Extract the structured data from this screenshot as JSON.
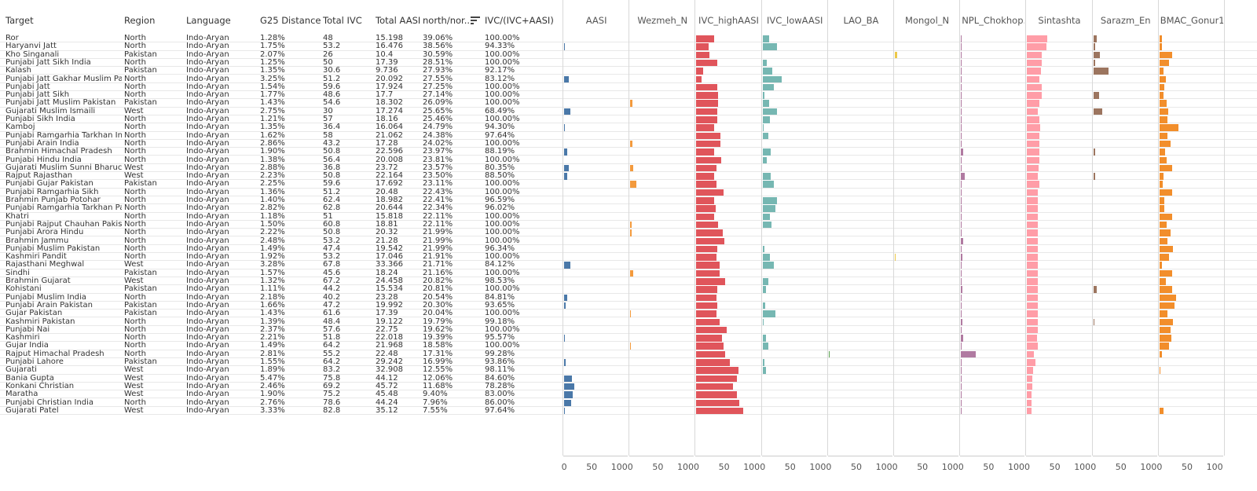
{
  "columns": {
    "target": "Target",
    "region": "Region",
    "language": "Language",
    "g25": "G25 Distance",
    "ivc": "Total IVC",
    "aasi": "Total AASI",
    "ratio": "north/nor..",
    "ivc_share": "IVC/(IVC+AASI)"
  },
  "sort_icon": "sort-descending-icon",
  "bar_columns": [
    {
      "key": "aasi",
      "label": "AASI",
      "color": "#4a78a8"
    },
    {
      "key": "wez",
      "label": "Wezmeh_N",
      "color": "#f39a3d"
    },
    {
      "key": "ivch",
      "label": "IVC_highAASI",
      "color": "#e0555b"
    },
    {
      "key": "ivcl",
      "label": "IVC_lowAASI",
      "color": "#76b7b2"
    },
    {
      "key": "lao",
      "label": "LAO_BA",
      "color": "#59a14f"
    },
    {
      "key": "mon",
      "label": "Mongol_N",
      "color": "#edc949"
    },
    {
      "key": "npl",
      "label": "NPL_Chokhop..",
      "color": "#b07aa1"
    },
    {
      "key": "sin",
      "label": "Sintashta",
      "color": "#ff9da7"
    },
    {
      "key": "sar",
      "label": "Sarazm_En",
      "color": "#9c755f"
    },
    {
      "key": "bmac",
      "label": "BMAC_Gonur1",
      "color": "#f28e2b"
    }
  ],
  "axis_ticks": [
    "0",
    "50",
    "100"
  ],
  "rows": [
    {
      "target": "Ror",
      "region": "North",
      "language": "Indo-Aryan",
      "g25": "1.28%",
      "ivc": "48",
      "aasi": "15.198",
      "ratio": "39.06%",
      "ivc_share": "100.00%",
      "aasi_v": 0,
      "wez": 0,
      "ivch": 33,
      "ivcl": 12,
      "lao": 0,
      "mon": 0,
      "npl": 1,
      "sin": 37,
      "sar": 6,
      "bmac": 5
    },
    {
      "target": "Haryanvi Jatt",
      "region": "North",
      "language": "Indo-Aryan",
      "g25": "1.75%",
      "ivc": "53.2",
      "aasi": "16.476",
      "ratio": "38.56%",
      "ivc_share": "94.33%",
      "aasi_v": 2,
      "wez": 0,
      "ivch": 23,
      "ivcl": 27,
      "lao": 0,
      "mon": 0,
      "npl": 1,
      "sin": 35,
      "sar": 4,
      "bmac": 4
    },
    {
      "target": "Kho Singanali",
      "region": "Pakistan",
      "language": "Indo-Aryan",
      "g25": "2.07%",
      "ivc": "26",
      "aasi": "10.4",
      "ratio": "30.59%",
      "ivc_share": "100.00%",
      "aasi_v": 0,
      "wez": 0,
      "ivch": 24,
      "ivcl": 0,
      "lao": 0,
      "mon": 4,
      "npl": 1,
      "sin": 27,
      "sar": 12,
      "bmac": 23
    },
    {
      "target": "Punjabi Jatt Sikh India",
      "region": "North",
      "language": "Indo-Aryan",
      "g25": "1.25%",
      "ivc": "50",
      "aasi": "17.39",
      "ratio": "28.51%",
      "ivc_share": "100.00%",
      "aasi_v": 0,
      "wez": 0,
      "ivch": 38,
      "ivcl": 8,
      "lao": 0,
      "mon": 0,
      "npl": 1,
      "sin": 27,
      "sar": 3,
      "bmac": 18
    },
    {
      "target": "Kalash",
      "region": "Pakistan",
      "language": "Indo-Aryan",
      "g25": "1.35%",
      "ivc": "30.6",
      "aasi": "9.736",
      "ratio": "27.93%",
      "ivc_share": "92.17%",
      "aasi_v": 0,
      "wez": 0,
      "ivch": 12,
      "ivcl": 18,
      "lao": 0,
      "mon": 0,
      "npl": 1,
      "sin": 25,
      "sar": 28,
      "bmac": 8
    },
    {
      "target": "Punjabi Jatt Gakhar Muslim Pakistan",
      "region": "North",
      "language": "Indo-Aryan",
      "g25": "3.25%",
      "ivc": "51.2",
      "aasi": "20.092",
      "ratio": "27.55%",
      "ivc_share": "83.12%",
      "aasi_v": 9,
      "wez": 0,
      "ivch": 10,
      "ivcl": 35,
      "lao": 0,
      "mon": 0,
      "npl": 1,
      "sin": 22,
      "sar": 0,
      "bmac": 12
    },
    {
      "target": "Punjabi Jatt",
      "region": "North",
      "language": "Indo-Aryan",
      "g25": "1.54%",
      "ivc": "59.6",
      "aasi": "17.924",
      "ratio": "27.25%",
      "ivc_share": "100.00%",
      "aasi_v": 0,
      "wez": 0,
      "ivch": 38,
      "ivcl": 20,
      "lao": 0,
      "mon": 0,
      "npl": 1,
      "sin": 26,
      "sar": 0,
      "bmac": 9
    },
    {
      "target": "Punjabi Jatt Sikh",
      "region": "North",
      "language": "Indo-Aryan",
      "g25": "1.77%",
      "ivc": "48.6",
      "aasi": "17.7",
      "ratio": "27.14%",
      "ivc_share": "100.00%",
      "aasi_v": 0,
      "wez": 0,
      "ivch": 39,
      "ivcl": 4,
      "lao": 0,
      "mon": 0,
      "npl": 1,
      "sin": 26,
      "sar": 10,
      "bmac": 8
    },
    {
      "target": "Punjabi Jatt Muslim Pakistan",
      "region": "Pakistan",
      "language": "Indo-Aryan",
      "g25": "1.43%",
      "ivc": "54.6",
      "aasi": "18.302",
      "ratio": "26.09%",
      "ivc_share": "100.00%",
      "aasi_v": 0,
      "wez": 4,
      "ivch": 39,
      "ivcl": 12,
      "lao": 0,
      "mon": 0,
      "npl": 1,
      "sin": 22,
      "sar": 0,
      "bmac": 13
    },
    {
      "target": "Gujarati Muslim Ismaili",
      "region": "West",
      "language": "Indo-Aryan",
      "g25": "2.75%",
      "ivc": "30",
      "aasi": "17.274",
      "ratio": "25.65%",
      "ivc_share": "68.49%",
      "aasi_v": 11,
      "wez": 0,
      "ivch": 38,
      "ivcl": 27,
      "lao": 0,
      "mon": 0,
      "npl": 1,
      "sin": 20,
      "sar": 16,
      "bmac": 16
    },
    {
      "target": "Punjabi Sikh India",
      "region": "North",
      "language": "Indo-Aryan",
      "g25": "1.21%",
      "ivc": "57",
      "aasi": "18.16",
      "ratio": "25.46%",
      "ivc_share": "100.00%",
      "aasi_v": 0,
      "wez": 0,
      "ivch": 38,
      "ivcl": 14,
      "lao": 0,
      "mon": 0,
      "npl": 1,
      "sin": 22,
      "sar": 0,
      "bmac": 14
    },
    {
      "target": "Kamboj",
      "region": "North",
      "language": "Indo-Aryan",
      "g25": "1.35%",
      "ivc": "36.4",
      "aasi": "16.064",
      "ratio": "24.79%",
      "ivc_share": "94.30%",
      "aasi_v": 2,
      "wez": 0,
      "ivch": 32,
      "ivcl": 2,
      "lao": 0,
      "mon": 0,
      "npl": 1,
      "sin": 24,
      "sar": 0,
      "bmac": 34
    },
    {
      "target": "Punjabi Ramgarhia Tarkhan India",
      "region": "North",
      "language": "Indo-Aryan",
      "g25": "1.62%",
      "ivc": "58",
      "aasi": "21.062",
      "ratio": "24.38%",
      "ivc_share": "97.64%",
      "aasi_v": 0,
      "wez": 0,
      "ivch": 44,
      "ivcl": 11,
      "lao": 0,
      "mon": 0,
      "npl": 1,
      "sin": 23,
      "sar": 0,
      "bmac": 14
    },
    {
      "target": "Punjabi Arain India",
      "region": "North",
      "language": "Indo-Aryan",
      "g25": "2.86%",
      "ivc": "43.2",
      "aasi": "17.28",
      "ratio": "24.02%",
      "ivc_share": "100.00%",
      "aasi_v": 0,
      "wez": 4,
      "ivch": 44,
      "ivcl": 0,
      "lao": 0,
      "mon": 0,
      "npl": 1,
      "sin": 22,
      "sar": 0,
      "bmac": 21
    },
    {
      "target": "Brahmin Himachal Pradesh",
      "region": "North",
      "language": "Indo-Aryan",
      "g25": "1.90%",
      "ivc": "50.8",
      "aasi": "22.596",
      "ratio": "23.97%",
      "ivc_share": "88.19%",
      "aasi_v": 5,
      "wez": 0,
      "ivch": 33,
      "ivcl": 15,
      "lao": 0,
      "mon": 0,
      "npl": 4,
      "sin": 23,
      "sar": 4,
      "bmac": 11
    },
    {
      "target": "Punjabi Hindu India",
      "region": "North",
      "language": "Indo-Aryan",
      "g25": "1.38%",
      "ivc": "56.4",
      "aasi": "20.008",
      "ratio": "23.81%",
      "ivc_share": "100.00%",
      "aasi_v": 0,
      "wez": 0,
      "ivch": 45,
      "ivcl": 8,
      "lao": 0,
      "mon": 0,
      "npl": 1,
      "sin": 23,
      "sar": 0,
      "bmac": 13
    },
    {
      "target": "Gujarati Muslim Sunni Bharuch",
      "region": "West",
      "language": "Indo-Aryan",
      "g25": "2.88%",
      "ivc": "36.8",
      "aasi": "23.72",
      "ratio": "23.57%",
      "ivc_share": "80.35%",
      "aasi_v": 8,
      "wez": 6,
      "ivch": 37,
      "ivcl": 0,
      "lao": 0,
      "mon": 0,
      "npl": 1,
      "sin": 21,
      "sar": 0,
      "bmac": 23
    },
    {
      "target": "Rajput Rajasthan",
      "region": "West",
      "language": "Indo-Aryan",
      "g25": "2.23%",
      "ivc": "50.8",
      "aasi": "22.164",
      "ratio": "23.50%",
      "ivc_share": "88.50%",
      "aasi_v": 5,
      "wez": 0,
      "ivch": 33,
      "ivcl": 15,
      "lao": 0,
      "mon": 0,
      "npl": 7,
      "sin": 20,
      "sar": 3,
      "bmac": 7
    },
    {
      "target": "Punjabi Gujar Pakistan",
      "region": "Pakistan",
      "language": "Indo-Aryan",
      "g25": "2.25%",
      "ivc": "59.6",
      "aasi": "17.692",
      "ratio": "23.11%",
      "ivc_share": "100.00%",
      "aasi_v": 0,
      "wez": 11,
      "ivch": 36,
      "ivcl": 21,
      "lao": 0,
      "mon": 0,
      "npl": 1,
      "sin": 22,
      "sar": 0,
      "bmac": 6
    },
    {
      "target": "Punjabi Ramgarhia Sikh",
      "region": "North",
      "language": "Indo-Aryan",
      "g25": "1.36%",
      "ivc": "51.2",
      "aasi": "20.48",
      "ratio": "22.43%",
      "ivc_share": "100.00%",
      "aasi_v": 0,
      "wez": 0,
      "ivch": 50,
      "ivcl": 0,
      "lao": 0,
      "mon": 0,
      "npl": 1,
      "sin": 20,
      "sar": 0,
      "bmac": 23
    },
    {
      "target": "Brahmin Punjab Potohar",
      "region": "North",
      "language": "Indo-Aryan",
      "g25": "1.40%",
      "ivc": "62.4",
      "aasi": "18.982",
      "ratio": "22.41%",
      "ivc_share": "96.59%",
      "aasi_v": 0,
      "wez": 0,
      "ivch": 32,
      "ivcl": 27,
      "lao": 0,
      "mon": 0,
      "npl": 1,
      "sin": 20,
      "sar": 0,
      "bmac": 9
    },
    {
      "target": "Punjabi Ramgarhia Tarkhan Pakistan",
      "region": "North",
      "language": "Indo-Aryan",
      "g25": "2.82%",
      "ivc": "62.8",
      "aasi": "20.644",
      "ratio": "22.34%",
      "ivc_share": "96.02%",
      "aasi_v": 0,
      "wez": 0,
      "ivch": 35,
      "ivcl": 23,
      "lao": 0,
      "mon": 0,
      "npl": 1,
      "sin": 20,
      "sar": 0,
      "bmac": 9
    },
    {
      "target": "Khatri",
      "region": "North",
      "language": "Indo-Aryan",
      "g25": "1.18%",
      "ivc": "51",
      "aasi": "15.818",
      "ratio": "22.11%",
      "ivc_share": "100.00%",
      "aasi_v": 0,
      "wez": 0,
      "ivch": 33,
      "ivcl": 14,
      "lao": 0,
      "mon": 0,
      "npl": 1,
      "sin": 20,
      "sar": 0,
      "bmac": 23
    },
    {
      "target": "Punjabi Rajput Chauhan Pakistan",
      "region": "North",
      "language": "Indo-Aryan",
      "g25": "1.50%",
      "ivc": "60.8",
      "aasi": "18.81",
      "ratio": "22.11%",
      "ivc_share": "100.00%",
      "aasi_v": 0,
      "wez": 2,
      "ivch": 39,
      "ivcl": 17,
      "lao": 0,
      "mon": 0,
      "npl": 1,
      "sin": 20,
      "sar": 0,
      "bmac": 13
    },
    {
      "target": "Punjabi Arora Hindu",
      "region": "North",
      "language": "Indo-Aryan",
      "g25": "2.22%",
      "ivc": "50.8",
      "aasi": "20.32",
      "ratio": "21.99%",
      "ivc_share": "100.00%",
      "aasi_v": 0,
      "wez": 3,
      "ivch": 48,
      "ivcl": 0,
      "lao": 0,
      "mon": 0,
      "npl": 1,
      "sin": 20,
      "sar": 0,
      "bmac": 21
    },
    {
      "target": "Brahmin Jammu",
      "region": "North",
      "language": "Indo-Aryan",
      "g25": "2.48%",
      "ivc": "53.2",
      "aasi": "21.28",
      "ratio": "21.99%",
      "ivc_share": "100.00%",
      "aasi_v": 0,
      "wez": 0,
      "ivch": 51,
      "ivcl": 0,
      "lao": 0,
      "mon": 0,
      "npl": 4,
      "sin": 20,
      "sar": 0,
      "bmac": 15
    },
    {
      "target": "Punjabi Muslim Pakistan",
      "region": "North",
      "language": "Indo-Aryan",
      "g25": "1.49%",
      "ivc": "47.4",
      "aasi": "19.542",
      "ratio": "21.99%",
      "ivc_share": "96.34%",
      "aasi_v": 0,
      "wez": 0,
      "ivch": 38,
      "ivcl": 3,
      "lao": 0,
      "mon": 0,
      "npl": 1,
      "sin": 20,
      "sar": 0,
      "bmac": 24
    },
    {
      "target": "Kashmiri Pandit",
      "region": "North",
      "language": "Indo-Aryan",
      "g25": "1.92%",
      "ivc": "53.2",
      "aasi": "17.046",
      "ratio": "21.91%",
      "ivc_share": "100.00%",
      "aasi_v": 0,
      "wez": 0,
      "ivch": 36,
      "ivcl": 13,
      "lao": 0,
      "mon": 1,
      "npl": 3,
      "sin": 20,
      "sar": 0,
      "bmac": 18
    },
    {
      "target": "Rajasthani Meghwal",
      "region": "West",
      "language": "Indo-Aryan",
      "g25": "3.28%",
      "ivc": "67.8",
      "aasi": "33.366",
      "ratio": "21.71%",
      "ivc_share": "84.12%",
      "aasi_v": 11,
      "wez": 0,
      "ivch": 43,
      "ivcl": 21,
      "lao": 0,
      "mon": 0,
      "npl": 1,
      "sin": 20,
      "sar": 0,
      "bmac": 4
    },
    {
      "target": "Sindhi",
      "region": "Pakistan",
      "language": "Indo-Aryan",
      "g25": "1.57%",
      "ivc": "45.6",
      "aasi": "18.24",
      "ratio": "21.16%",
      "ivc_share": "100.00%",
      "aasi_v": 0,
      "wez": 6,
      "ivch": 43,
      "ivcl": 0,
      "lao": 0,
      "mon": 0,
      "npl": 1,
      "sin": 20,
      "sar": 0,
      "bmac": 23
    },
    {
      "target": "Brahmin Gujarat",
      "region": "West",
      "language": "Indo-Aryan",
      "g25": "1.32%",
      "ivc": "67.2",
      "aasi": "24.458",
      "ratio": "20.82%",
      "ivc_share": "98.53%",
      "aasi_v": 0,
      "wez": 0,
      "ivch": 52,
      "ivcl": 11,
      "lao": 0,
      "mon": 0,
      "npl": 1,
      "sin": 19,
      "sar": 0,
      "bmac": 12
    },
    {
      "target": "Kohistani",
      "region": "Pakistan",
      "language": "Indo-Aryan",
      "g25": "1.11%",
      "ivc": "44.2",
      "aasi": "15.534",
      "ratio": "20.81%",
      "ivc_share": "100.00%",
      "aasi_v": 0,
      "wez": 0,
      "ivch": 38,
      "ivcl": 6,
      "lao": 0,
      "mon": 0,
      "npl": 3,
      "sin": 19,
      "sar": 6,
      "bmac": 23
    },
    {
      "target": "Punjabi Muslim India",
      "region": "North",
      "language": "Indo-Aryan",
      "g25": "2.18%",
      "ivc": "40.2",
      "aasi": "23.28",
      "ratio": "20.54%",
      "ivc_share": "84.81%",
      "aasi_v": 5,
      "wez": 0,
      "ivch": 37,
      "ivcl": 0,
      "lao": 0,
      "mon": 0,
      "npl": 1,
      "sin": 19,
      "sar": 0,
      "bmac": 31
    },
    {
      "target": "Punjabi Arain Pakistan",
      "region": "Pakistan",
      "language": "Indo-Aryan",
      "g25": "1.66%",
      "ivc": "47.2",
      "aasi": "19.992",
      "ratio": "20.30%",
      "ivc_share": "93.65%",
      "aasi_v": 3,
      "wez": 0,
      "ivch": 38,
      "ivcl": 5,
      "lao": 0,
      "mon": 0,
      "npl": 1,
      "sin": 19,
      "sar": 0,
      "bmac": 28
    },
    {
      "target": "Gujar Pakistan",
      "region": "Pakistan",
      "language": "Indo-Aryan",
      "g25": "1.43%",
      "ivc": "61.6",
      "aasi": "17.39",
      "ratio": "20.04%",
      "ivc_share": "100.00%",
      "aasi_v": 0,
      "wez": 1,
      "ivch": 36,
      "ivcl": 24,
      "lao": 0,
      "mon": 0,
      "npl": 1,
      "sin": 19,
      "sar": 0,
      "bmac": 15
    },
    {
      "target": "Kashmiri Pakistan",
      "region": "North",
      "language": "Indo-Aryan",
      "g25": "1.39%",
      "ivc": "48.4",
      "aasi": "19.122",
      "ratio": "19.79%",
      "ivc_share": "99.18%",
      "aasi_v": 0,
      "wez": 0,
      "ivch": 43,
      "ivcl": 2,
      "lao": 0,
      "mon": 0,
      "npl": 3,
      "sin": 19,
      "sar": 2,
      "bmac": 24
    },
    {
      "target": "Punjabi Nai",
      "region": "North",
      "language": "Indo-Aryan",
      "g25": "2.37%",
      "ivc": "57.6",
      "aasi": "22.75",
      "ratio": "19.62%",
      "ivc_share": "100.00%",
      "aasi_v": 0,
      "wez": 0,
      "ivch": 55,
      "ivcl": 0,
      "lao": 0,
      "mon": 0,
      "npl": 1,
      "sin": 19,
      "sar": 0,
      "bmac": 21
    },
    {
      "target": "Kashmiri",
      "region": "North",
      "language": "Indo-Aryan",
      "g25": "2.21%",
      "ivc": "51.8",
      "aasi": "22.018",
      "ratio": "19.39%",
      "ivc_share": "95.57%",
      "aasi_v": 2,
      "wez": 0,
      "ivch": 46,
      "ivcl": 6,
      "lao": 0,
      "mon": 0,
      "npl": 4,
      "sin": 18,
      "sar": 0,
      "bmac": 22
    },
    {
      "target": "Gujar India",
      "region": "North",
      "language": "Indo-Aryan",
      "g25": "1.49%",
      "ivc": "64.2",
      "aasi": "21.968",
      "ratio": "18.58%",
      "ivc_share": "100.00%",
      "aasi_v": 0,
      "wez": 1,
      "ivch": 50,
      "ivcl": 11,
      "lao": 0,
      "mon": 0,
      "npl": 1,
      "sin": 19,
      "sar": 0,
      "bmac": 17
    },
    {
      "target": "Rajput Himachal Pradesh",
      "region": "North",
      "language": "Indo-Aryan",
      "g25": "2.81%",
      "ivc": "55.2",
      "aasi": "22.48",
      "ratio": "17.31%",
      "ivc_share": "99.28%",
      "aasi_v": 0,
      "wez": 0,
      "ivch": 53,
      "ivcl": 0,
      "lao": 2,
      "mon": 0,
      "npl": 27,
      "sin": 12,
      "sar": 0,
      "bmac": 4
    },
    {
      "target": "Punjabi Lahore",
      "region": "Pakistan",
      "language": "Indo-Aryan",
      "g25": "1.55%",
      "ivc": "64.2",
      "aasi": "29.242",
      "ratio": "16.99%",
      "ivc_share": "93.86%",
      "aasi_v": 3,
      "wez": 0,
      "ivch": 61,
      "ivcl": 3,
      "lao": 0,
      "mon": 0,
      "npl": 1,
      "sin": 15,
      "sar": 0,
      "bmac": 0
    },
    {
      "target": "Gujarati",
      "region": "West",
      "language": "Indo-Aryan",
      "g25": "1.89%",
      "ivc": "83.2",
      "aasi": "32.908",
      "ratio": "12.55%",
      "ivc_share": "98.11%",
      "aasi_v": 0,
      "wez": 0,
      "ivch": 76,
      "ivcl": 6,
      "lao": 0,
      "mon": 0,
      "npl": 1,
      "sin": 11,
      "sar": 0,
      "bmac": 2
    },
    {
      "target": "Bania Gupta",
      "region": "West",
      "language": "Indo-Aryan",
      "g25": "5.47%",
      "ivc": "75.8",
      "aasi": "44.12",
      "ratio": "12.06%",
      "ivc_share": "84.60%",
      "aasi_v": 14,
      "wez": 0,
      "ivch": 74,
      "ivcl": 0,
      "lao": 0,
      "mon": 0,
      "npl": 1,
      "sin": 10,
      "sar": 0,
      "bmac": 0
    },
    {
      "target": "Konkani Christian",
      "region": "West",
      "language": "Indo-Aryan",
      "g25": "2.46%",
      "ivc": "69.2",
      "aasi": "45.72",
      "ratio": "11.68%",
      "ivc_share": "78.28%",
      "aasi_v": 18,
      "wez": 0,
      "ivch": 67,
      "ivcl": 0,
      "lao": 0,
      "mon": 0,
      "npl": 1,
      "sin": 9,
      "sar": 0,
      "bmac": 0
    },
    {
      "target": "Maratha",
      "region": "West",
      "language": "Indo-Aryan",
      "g25": "1.90%",
      "ivc": "75.2",
      "aasi": "45.48",
      "ratio": "9.40%",
      "ivc_share": "83.00%",
      "aasi_v": 15,
      "wez": 0,
      "ivch": 74,
      "ivcl": 0,
      "lao": 0,
      "mon": 0,
      "npl": 1,
      "sin": 8,
      "sar": 0,
      "bmac": 0
    },
    {
      "target": "Punjabi Christian India",
      "region": "North",
      "language": "Indo-Aryan",
      "g25": "2.76%",
      "ivc": "78.6",
      "aasi": "44.24",
      "ratio": "7.96%",
      "ivc_share": "86.00%",
      "aasi_v": 13,
      "wez": 0,
      "ivch": 78,
      "ivcl": 0,
      "lao": 0,
      "mon": 0,
      "npl": 1,
      "sin": 8,
      "sar": 0,
      "bmac": 0
    },
    {
      "target": "Gujarati Patel",
      "region": "West",
      "language": "Indo-Aryan",
      "g25": "3.33%",
      "ivc": "82.8",
      "aasi": "35.12",
      "ratio": "7.55%",
      "ivc_share": "97.64%",
      "aasi_v": 2,
      "wez": 0,
      "ivch": 85,
      "ivcl": 0,
      "lao": 0,
      "mon": 0,
      "npl": 1,
      "sin": 8,
      "sar": 0,
      "bmac": 7
    }
  ]
}
